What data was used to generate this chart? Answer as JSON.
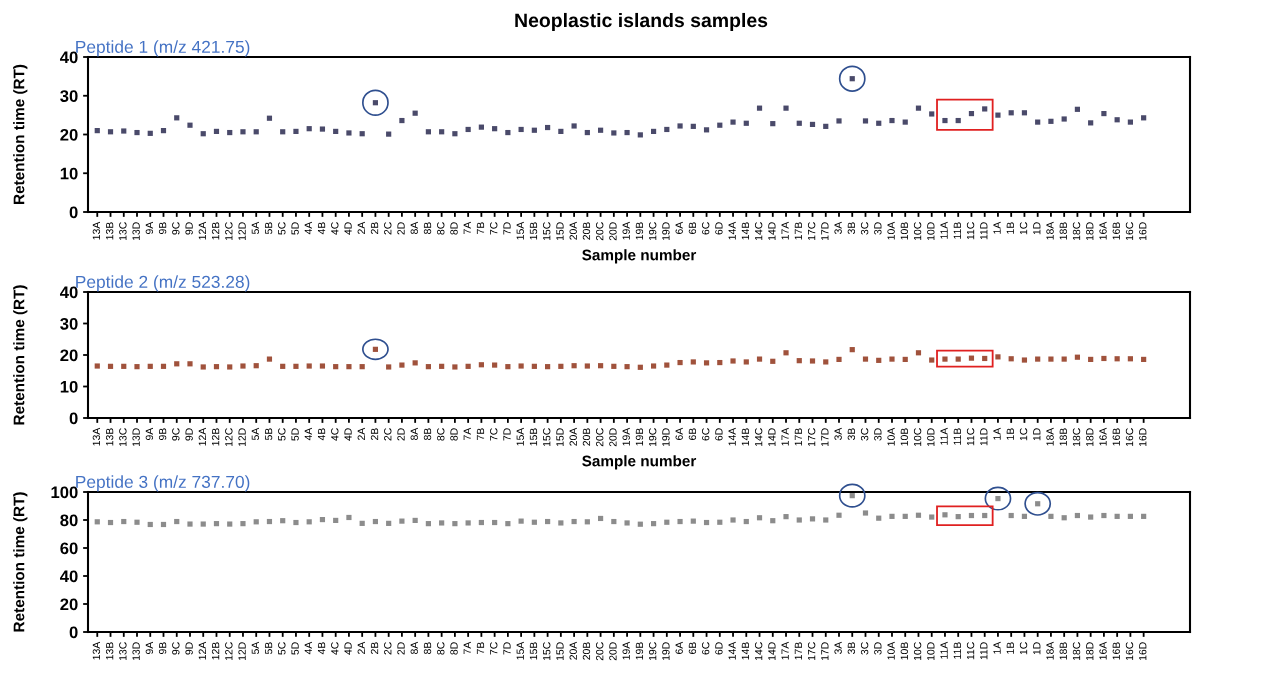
{
  "chart_data": [
    {
      "type": "scatter",
      "title": "Neoplastic islands samples",
      "subtitle": "Peptide 1 (m/z 421.75)",
      "xlabel": "Sample number",
      "ylabel": "Retention time (RT)",
      "categories": [
        "13A",
        "13B",
        "13C",
        "13D",
        "9A",
        "9B",
        "9C",
        "9D",
        "12A",
        "12B",
        "12C",
        "12D",
        "5A",
        "5B",
        "5C",
        "5D",
        "4A",
        "4B",
        "4C",
        "4D",
        "2A",
        "2B",
        "2C",
        "2D",
        "8A",
        "8B",
        "8C",
        "8D",
        "7A",
        "7B",
        "7C",
        "7D",
        "15A",
        "15B",
        "15C",
        "15D",
        "20A",
        "20B",
        "20C",
        "20D",
        "19A",
        "19B",
        "19C",
        "19D",
        "6A",
        "6B",
        "6C",
        "6D",
        "14A",
        "14B",
        "14C",
        "14D",
        "17A",
        "17B",
        "17C",
        "17D",
        "3A",
        "3B",
        "3C",
        "3D",
        "10A",
        "10B",
        "10C",
        "10D",
        "11A",
        "11B",
        "11C",
        "11D",
        "1A",
        "1B",
        "1C",
        "1D",
        "18A",
        "18B",
        "18C",
        "18D",
        "16A",
        "16B",
        "16C",
        "16D"
      ],
      "series": [
        {
          "color": "#4a4a6a",
          "values": [
            21,
            20.7,
            20.9,
            20.5,
            20.3,
            21,
            24.3,
            22.4,
            20.2,
            20.8,
            20.5,
            20.7,
            20.7,
            24.2,
            20.7,
            20.8,
            21.5,
            21.4,
            20.8,
            20.4,
            20.2,
            28.2,
            20.1,
            23.6,
            25.5,
            20.7,
            20.7,
            20.2,
            21.3,
            21.9,
            21.5,
            20.5,
            21.3,
            21.1,
            21.8,
            20.8,
            22.2,
            20.5,
            21.1,
            20.4,
            20.5,
            19.9,
            20.8,
            21.3,
            22.2,
            22.1,
            21.2,
            22.4,
            23.2,
            22.9,
            26.8,
            22.8,
            26.8,
            22.9,
            22.6,
            22.1,
            23.5,
            34.4,
            23.5,
            22.9,
            23.6,
            23.2,
            26.8,
            25.3,
            23.6,
            23.6,
            25.4,
            26.6,
            25,
            25.6,
            25.6,
            23.2,
            23.4,
            24,
            26.5,
            23,
            25.4,
            23.8,
            23.2,
            24.3
          ]
        }
      ],
      "ylim": [
        0,
        40
      ],
      "yticks": [
        0,
        10,
        20,
        30,
        40
      ],
      "marker": "square",
      "grid": false,
      "legend": false
    },
    {
      "type": "scatter",
      "subtitle": "Peptide 2 (m/z 523.28)",
      "xlabel": "Sample number",
      "ylabel": "Retention time (RT)",
      "categories": [
        "13A",
        "13B",
        "13C",
        "13D",
        "9A",
        "9B",
        "9C",
        "9D",
        "12A",
        "12B",
        "12C",
        "12D",
        "5A",
        "5B",
        "5C",
        "5D",
        "4A",
        "4B",
        "4C",
        "4D",
        "2A",
        "2B",
        "2C",
        "2D",
        "8A",
        "8B",
        "8C",
        "8D",
        "7A",
        "7B",
        "7C",
        "7D",
        "15A",
        "15B",
        "15C",
        "15D",
        "20A",
        "20B",
        "20C",
        "20D",
        "19A",
        "19B",
        "19C",
        "19D",
        "6A",
        "6B",
        "6C",
        "6D",
        "14A",
        "14B",
        "14C",
        "14D",
        "17A",
        "17B",
        "17C",
        "17D",
        "3A",
        "3B",
        "3C",
        "3D",
        "10A",
        "10B",
        "10C",
        "10D",
        "11A",
        "11B",
        "11C",
        "11D",
        "1A",
        "1B",
        "1C",
        "1D",
        "18A",
        "18B",
        "18C",
        "18D",
        "16A",
        "16B",
        "16C",
        "16D"
      ],
      "series": [
        {
          "color": "#a0523c",
          "values": [
            16.5,
            16.4,
            16.4,
            16.3,
            16.4,
            16.4,
            17.2,
            17.2,
            16.2,
            16.3,
            16.2,
            16.5,
            16.6,
            18.7,
            16.4,
            16.4,
            16.5,
            16.5,
            16.3,
            16.3,
            16.3,
            21.8,
            16.2,
            16.8,
            17.5,
            16.3,
            16.4,
            16.2,
            16.4,
            16.9,
            16.8,
            16.3,
            16.5,
            16.4,
            16.3,
            16.4,
            16.6,
            16.5,
            16.6,
            16.4,
            16.3,
            16.1,
            16.5,
            16.8,
            17.6,
            17.8,
            17.5,
            17.6,
            18.1,
            17.8,
            18.7,
            18,
            20.7,
            18.2,
            18.1,
            17.8,
            18.6,
            21.7,
            18.7,
            18.3,
            18.7,
            18.6,
            20.7,
            18.4,
            18.7,
            18.7,
            19,
            18.9,
            19.4,
            18.8,
            18.4,
            18.7,
            18.7,
            18.7,
            19.3,
            18.6,
            18.9,
            18.8,
            18.8,
            18.6
          ]
        }
      ],
      "ylim": [
        0,
        40
      ],
      "yticks": [
        0,
        10,
        20,
        30,
        40
      ],
      "marker": "square",
      "grid": false,
      "legend": false
    },
    {
      "type": "scatter",
      "subtitle": "Peptide 3 (m/z 737.70)",
      "ylabel": "Retention time (RT)",
      "categories": [
        "13A",
        "13B",
        "13C",
        "13D",
        "9A",
        "9B",
        "9C",
        "9D",
        "12A",
        "12B",
        "12C",
        "12D",
        "5A",
        "5B",
        "5C",
        "5D",
        "4A",
        "4B",
        "4C",
        "4D",
        "2A",
        "2B",
        "2C",
        "2D",
        "8A",
        "8B",
        "8C",
        "8D",
        "7A",
        "7B",
        "7C",
        "7D",
        "15A",
        "15B",
        "15C",
        "15D",
        "20A",
        "20B",
        "20C",
        "20D",
        "19A",
        "19B",
        "19C",
        "19D",
        "6A",
        "6B",
        "6C",
        "6D",
        "14A",
        "14B",
        "14C",
        "14D",
        "17A",
        "17B",
        "17C",
        "17D",
        "3A",
        "3B",
        "3C",
        "3D",
        "10A",
        "10B",
        "10C",
        "10D",
        "11A",
        "11B",
        "11C",
        "11D",
        "1A",
        "1B",
        "1C",
        "1D",
        "18A",
        "18B",
        "18C",
        "18D",
        "16A",
        "16B",
        "16C",
        "16D"
      ],
      "series": [
        {
          "color": "#8c8c8c",
          "values": [
            78.7,
            78.2,
            78.9,
            78.4,
            76.8,
            76.8,
            78.9,
            77.1,
            77.1,
            77.4,
            77.1,
            77.4,
            78.7,
            78.9,
            79.5,
            78.2,
            78.7,
            80.3,
            79.7,
            81.8,
            77.6,
            78.9,
            77.6,
            79.2,
            79.7,
            77.4,
            77.9,
            77.4,
            77.9,
            78.2,
            78.2,
            77.4,
            79.2,
            78.4,
            78.9,
            77.9,
            78.9,
            78.7,
            81.1,
            78.9,
            77.9,
            77,
            77.4,
            78.4,
            78.9,
            79.2,
            78.2,
            78.4,
            80,
            78.9,
            81.6,
            79.5,
            82.4,
            80,
            80.8,
            80,
            83.4,
            97.4,
            85,
            81.3,
            82.6,
            82.6,
            83.4,
            82.1,
            83.7,
            82.4,
            83.2,
            83.2,
            95.3,
            83.2,
            82.6,
            91.6,
            82.6,
            81.6,
            83.2,
            82.1,
            83.2,
            82.6,
            82.6,
            82.6
          ]
        }
      ],
      "ylim": [
        0,
        100
      ],
      "yticks": [
        0,
        20,
        40,
        60,
        80,
        100
      ],
      "marker": "square",
      "grid": false,
      "legend": false
    }
  ]
}
